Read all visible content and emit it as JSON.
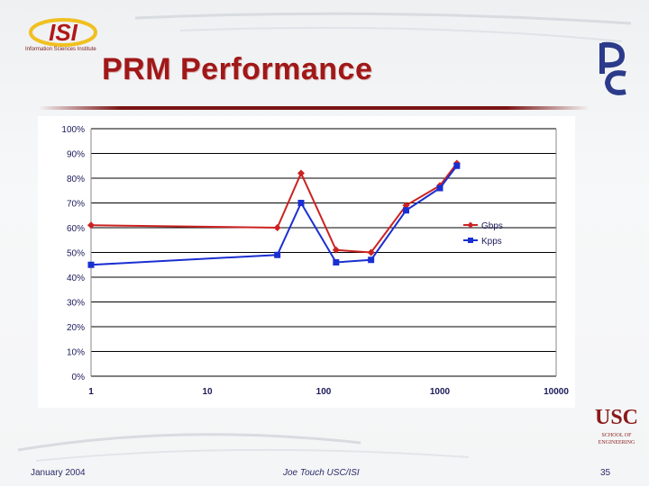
{
  "slide": {
    "title": "PRM Performance",
    "isi_logo_text": "ISI",
    "isi_logo_subtext": "Information Sciences Institute",
    "pc_logo_text": "PC",
    "usc_logo_text": "USC",
    "usc_logo_subtext": "SCHOOL OF ENGINEERING"
  },
  "footer": {
    "date": "January 2004",
    "author": "Joe Touch USC/ISI",
    "page": "35"
  },
  "colors": {
    "title": "#a01818",
    "gbps": "#cc2222",
    "kpps": "#1a2fd1"
  },
  "chart_data": {
    "type": "line",
    "xscale": "log",
    "xlim": [
      1,
      10000
    ],
    "ylim": [
      0,
      100
    ],
    "x_ticks": [
      "1",
      "10",
      "100",
      "1000",
      "10000"
    ],
    "y_ticks": [
      "0%",
      "10%",
      "20%",
      "30%",
      "40%",
      "50%",
      "60%",
      "70%",
      "80%",
      "90%",
      "100%"
    ],
    "grid": "horizontal",
    "legend": "right",
    "series": [
      {
        "name": "Gbps",
        "marker": "diamond",
        "x": [
          1,
          40,
          64,
          128,
          256,
          512,
          1000,
          1400
        ],
        "y": [
          61,
          60,
          82,
          51,
          50,
          69,
          77,
          86
        ]
      },
      {
        "name": "Kpps",
        "marker": "square",
        "x": [
          1,
          40,
          64,
          128,
          256,
          512,
          1000,
          1400
        ],
        "y": [
          45,
          49,
          70,
          46,
          47,
          67,
          76,
          85
        ]
      }
    ]
  }
}
